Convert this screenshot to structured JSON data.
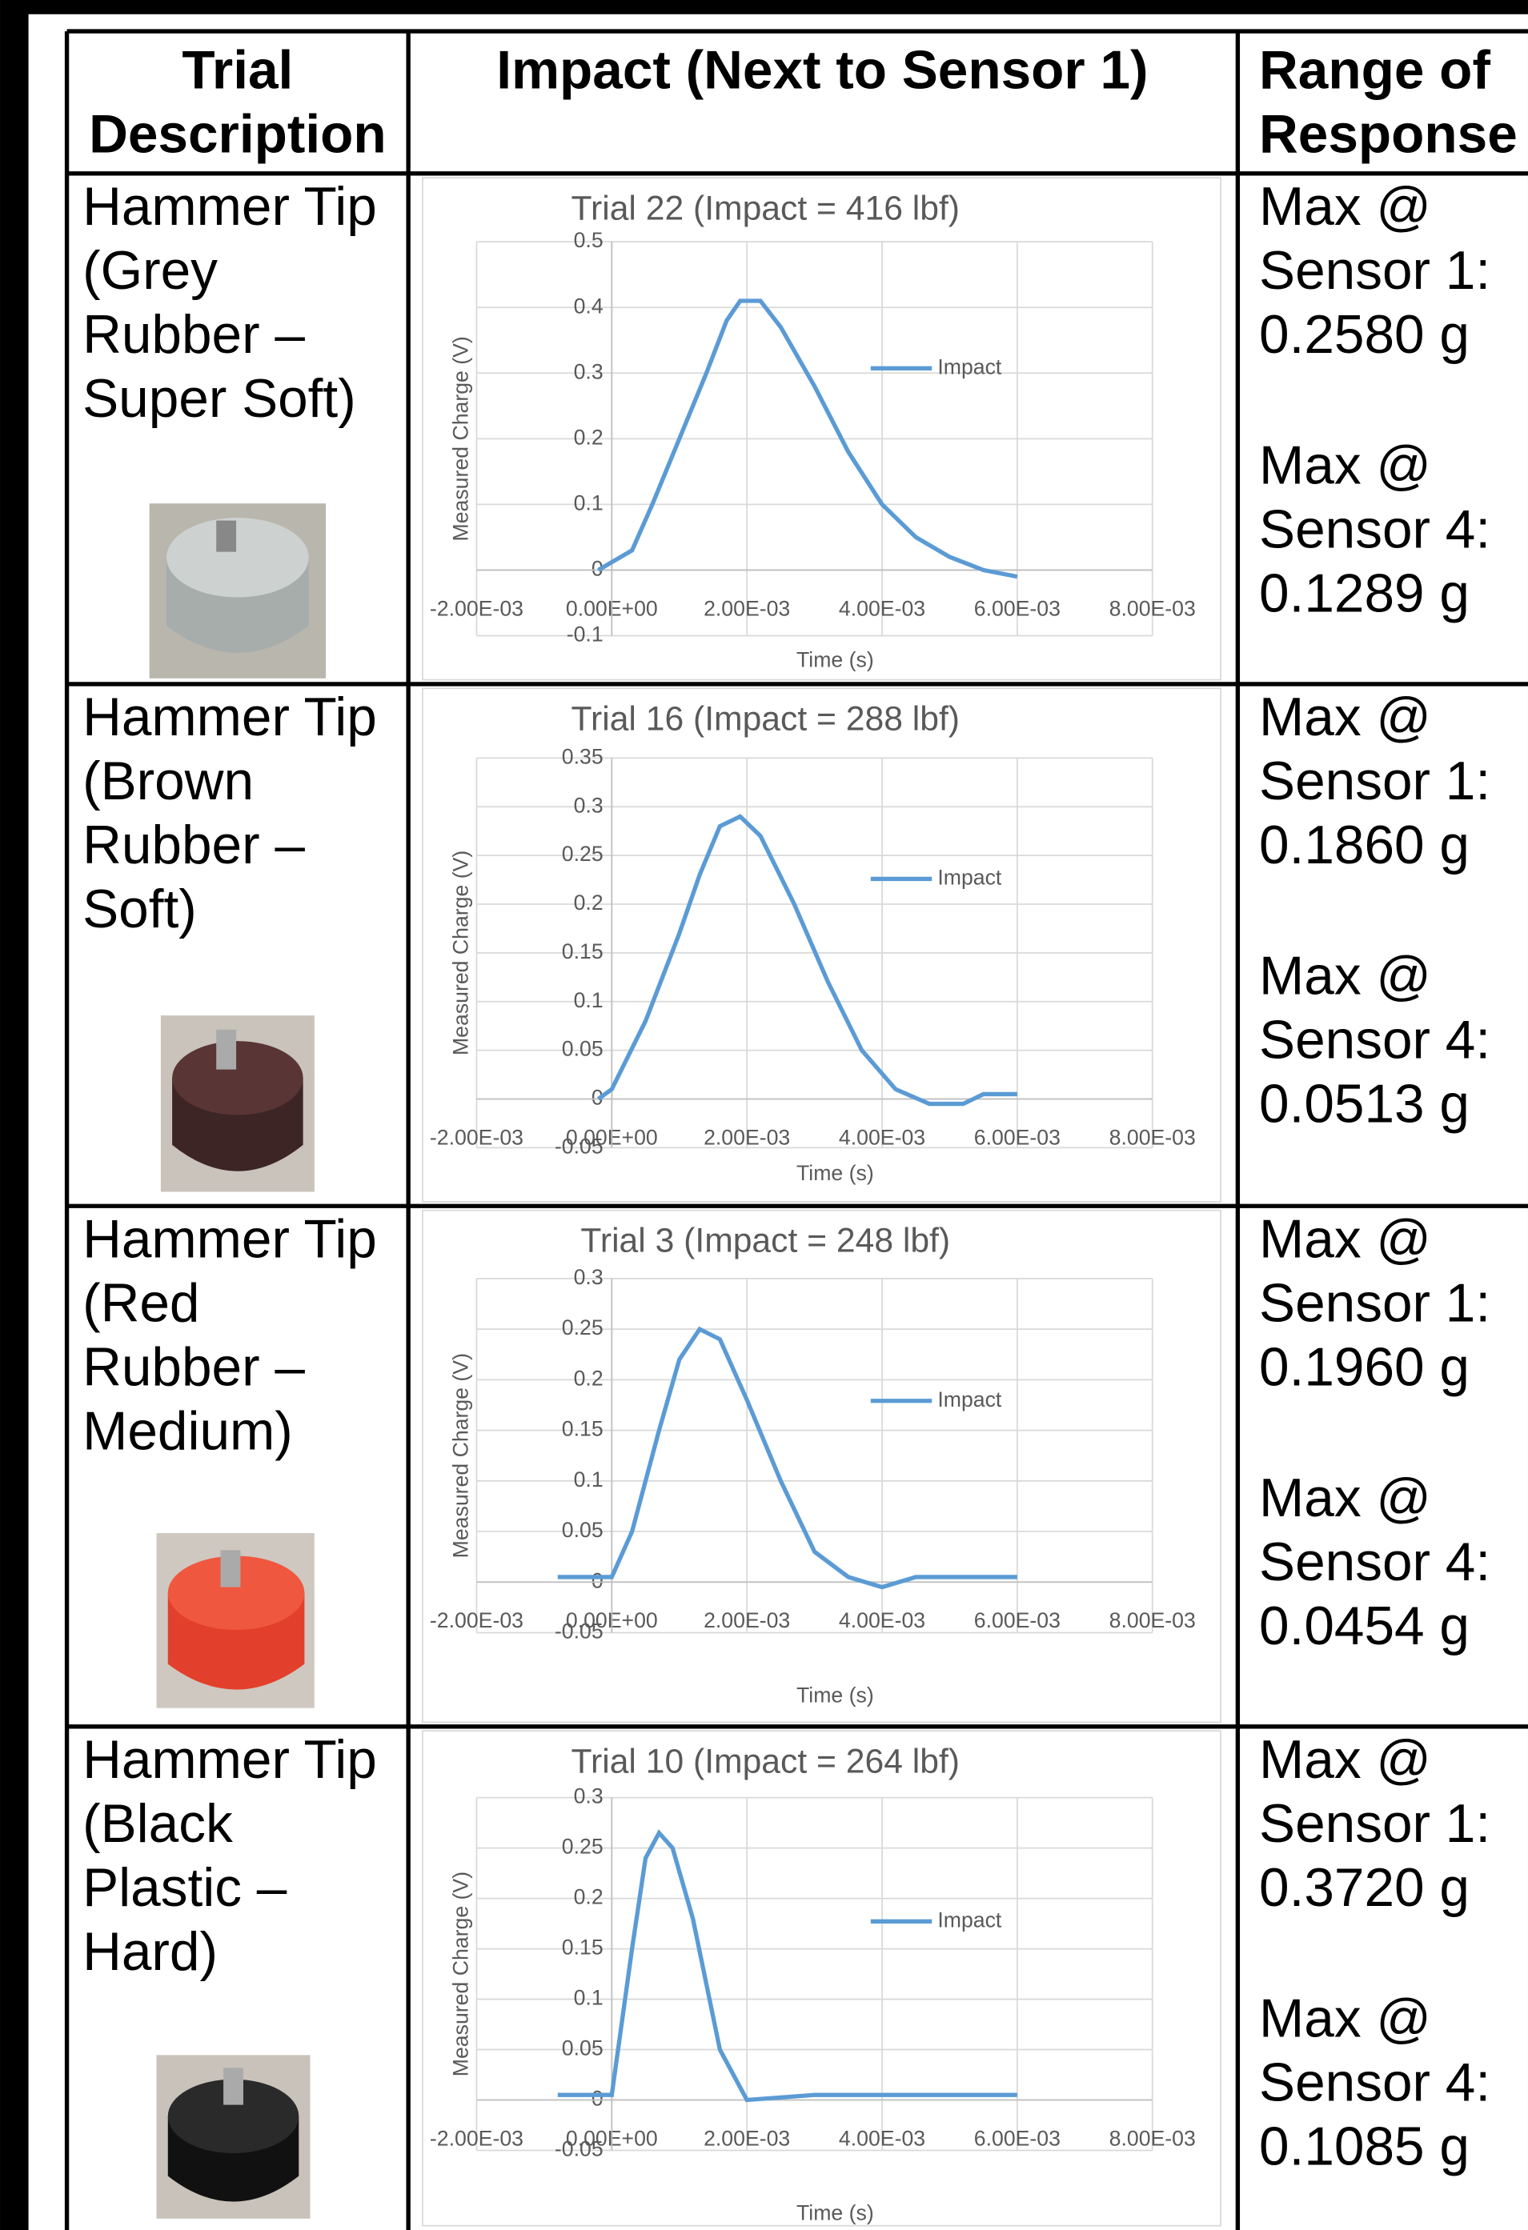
{
  "table": {
    "header": [
      [
        "Trial",
        "Description"
      ],
      [
        "Impact (Next to Sensor 1)"
      ],
      [
        "Range of",
        "Response"
      ]
    ],
    "rows": [
      {
        "description": [
          "Hammer Tip",
          "(Grey",
          "Rubber –",
          "Super Soft)"
        ],
        "chart": {
          "type": "line",
          "title": "Trial 22 (Impact = 416 lbf)",
          "x_label": "Time (s)",
          "y_label": "Measured Charge (V)",
          "grid": true,
          "xlim": [
            -0.002,
            0.008
          ],
          "xticks": [
            {
              "value": -0.002,
              "label": "-2.00E-03"
            },
            {
              "value": 0,
              "label": "0.00E+00"
            },
            {
              "value": 0.002,
              "label": "2.00E-03"
            },
            {
              "value": 0.004,
              "label": "4.00E-03"
            },
            {
              "value": 0.006,
              "label": "6.00E-03"
            },
            {
              "value": 0.008,
              "label": "8.00E-03"
            }
          ],
          "ylim": [
            -0.1,
            0.5
          ],
          "yticks": [
            -0.1,
            0,
            0.1,
            0.2,
            0.3,
            0.4,
            0.5
          ],
          "x": [
            -0.0002,
            0.0003,
            0.0006,
            0.001,
            0.0014,
            0.0017,
            0.0019,
            0.0022,
            0.0025,
            0.003,
            0.0035,
            0.004,
            0.0045,
            0.005,
            0.0055,
            0.006
          ],
          "series": [
            {
              "name": "Impact",
              "color": "#5b9bd5",
              "values": [
                0,
                0.03,
                0.1,
                0.2,
                0.3,
                0.38,
                0.41,
                0.41,
                0.37,
                0.28,
                0.18,
                0.1,
                0.05,
                0.02,
                0,
                -0.01
              ]
            }
          ]
        },
        "range": [
          [
            "Max @",
            "Sensor 1:",
            "0.2580 g"
          ],
          [
            "Max @",
            "Sensor 4:",
            "0.1289 g"
          ]
        ]
      },
      {
        "description": [
          "Hammer Tip",
          "(Brown",
          "Rubber –",
          "Soft)"
        ],
        "chart": {
          "type": "line",
          "title": "Trial 16 (Impact = 288 lbf)",
          "x_label": "Time (s)",
          "y_label": "Measured Charge (V)",
          "grid": true,
          "xlim": [
            -0.002,
            0.008
          ],
          "xticks": [
            {
              "value": -0.002,
              "label": "-2.00E-03"
            },
            {
              "value": 0,
              "label": "0.00E+00"
            },
            {
              "value": 0.002,
              "label": "2.00E-03"
            },
            {
              "value": 0.004,
              "label": "4.00E-03"
            },
            {
              "value": 0.006,
              "label": "6.00E-03"
            },
            {
              "value": 0.008,
              "label": "8.00E-03"
            }
          ],
          "ylim": [
            -0.05,
            0.35
          ],
          "yticks": [
            -0.05,
            0,
            0.05,
            0.1,
            0.15,
            0.2,
            0.25,
            0.3,
            0.35
          ],
          "x": [
            -0.0002,
            0,
            0.0005,
            0.001,
            0.0013,
            0.0016,
            0.0019,
            0.0022,
            0.0027,
            0.0032,
            0.0037,
            0.0042,
            0.0047,
            0.0052,
            0.0055,
            0.006
          ],
          "series": [
            {
              "name": "Impact",
              "color": "#5b9bd5",
              "values": [
                0,
                0.01,
                0.08,
                0.17,
                0.23,
                0.28,
                0.29,
                0.27,
                0.2,
                0.12,
                0.05,
                0.01,
                -0.005,
                -0.005,
                0.005,
                0.005
              ]
            }
          ]
        },
        "range": [
          [
            "Max @",
            "Sensor 1:",
            "0.1860 g"
          ],
          [
            "Max @",
            "Sensor 4:",
            "0.0513 g"
          ]
        ]
      },
      {
        "description": [
          "Hammer Tip",
          "(Red",
          "Rubber –",
          "Medium)"
        ],
        "chart": {
          "type": "line",
          "title": "Trial 3 (Impact = 248 lbf)",
          "x_label": "Time (s)",
          "y_label": "Measured Charge (V)",
          "grid": true,
          "xlim": [
            -0.002,
            0.008
          ],
          "xticks": [
            {
              "value": -0.002,
              "label": "-2.00E-03"
            },
            {
              "value": 0,
              "label": "0.00E+00"
            },
            {
              "value": 0.002,
              "label": "2.00E-03"
            },
            {
              "value": 0.004,
              "label": "4.00E-03"
            },
            {
              "value": 0.006,
              "label": "6.00E-03"
            },
            {
              "value": 0.008,
              "label": "8.00E-03"
            }
          ],
          "ylim": [
            -0.05,
            0.3
          ],
          "yticks": [
            -0.05,
            0,
            0.05,
            0.1,
            0.15,
            0.2,
            0.25,
            0.3
          ],
          "x": [
            -0.0008,
            0,
            0.0003,
            0.0007,
            0.001,
            0.0013,
            0.0016,
            0.002,
            0.0025,
            0.003,
            0.0035,
            0.004,
            0.0045,
            0.005,
            0.006
          ],
          "series": [
            {
              "name": "Impact",
              "color": "#5b9bd5",
              "values": [
                0.005,
                0.005,
                0.05,
                0.15,
                0.22,
                0.25,
                0.24,
                0.18,
                0.1,
                0.03,
                0.005,
                -0.005,
                0.005,
                0.005,
                0.005
              ]
            }
          ]
        },
        "range": [
          [
            "Max @",
            "Sensor 1:",
            "0.1960 g"
          ],
          [
            "Max @",
            "Sensor 4:",
            "0.0454 g"
          ]
        ]
      },
      {
        "description": [
          "Hammer Tip",
          "(Black",
          "Plastic –",
          "Hard)"
        ],
        "chart": {
          "type": "line",
          "title": "Trial 10 (Impact = 264 lbf)",
          "x_label": "Time (s)",
          "y_label": "Measured Charge (V)",
          "grid": true,
          "xlim": [
            -0.002,
            0.008
          ],
          "xticks": [
            {
              "value": -0.002,
              "label": "-2.00E-03"
            },
            {
              "value": 0,
              "label": "0.00E+00"
            },
            {
              "value": 0.002,
              "label": "2.00E-03"
            },
            {
              "value": 0.004,
              "label": "4.00E-03"
            },
            {
              "value": 0.006,
              "label": "6.00E-03"
            },
            {
              "value": 0.008,
              "label": "8.00E-03"
            }
          ],
          "ylim": [
            -0.05,
            0.3
          ],
          "yticks": [
            -0.05,
            0,
            0.05,
            0.1,
            0.15,
            0.2,
            0.25,
            0.3
          ],
          "x": [
            -0.0008,
            0,
            0.0003,
            0.0005,
            0.0007,
            0.0009,
            0.0012,
            0.0016,
            0.002,
            0.003,
            0.004,
            0.005,
            0.006
          ],
          "series": [
            {
              "name": "Impact",
              "color": "#5b9bd5",
              "values": [
                0.005,
                0.005,
                0.15,
                0.24,
                0.265,
                0.25,
                0.18,
                0.05,
                0,
                0.005,
                0.005,
                0.005,
                0.005
              ]
            }
          ]
        },
        "range": [
          [
            "Max @",
            "Sensor 1:",
            "0.3720 g"
          ],
          [
            "Max @",
            "Sensor 4:",
            "0.1085 g"
          ]
        ]
      }
    ]
  }
}
